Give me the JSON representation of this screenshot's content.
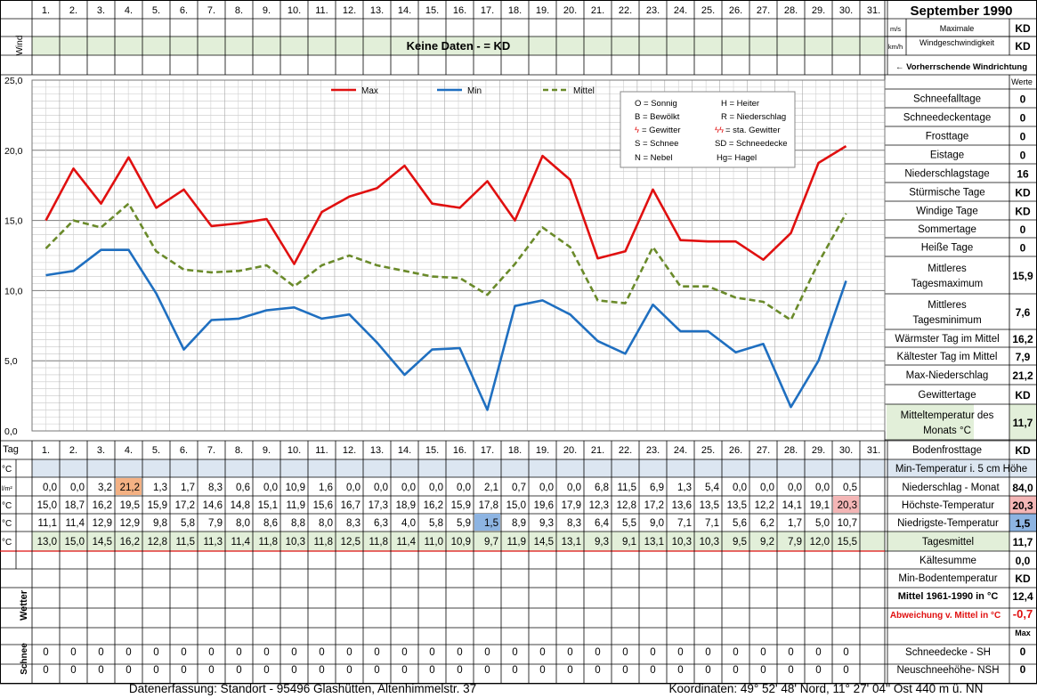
{
  "title": "September 1990",
  "days": [
    "1.",
    "2.",
    "3.",
    "4.",
    "5.",
    "6.",
    "7.",
    "8.",
    "9.",
    "10.",
    "11.",
    "12.",
    "13.",
    "14.",
    "15.",
    "16.",
    "17.",
    "18.",
    "19.",
    "20.",
    "21.",
    "22.",
    "23.",
    "24.",
    "25.",
    "26.",
    "27.",
    "28.",
    "29.",
    "30.",
    "31."
  ],
  "wind": {
    "label": "Wind",
    "no_data": "Keine Daten -  = KD",
    "unit_ms": "m/s",
    "unit_kmh": "km/h",
    "max_label_1": "Maximale",
    "max_label_2": "Windgeschwindigkeit",
    "max_ms": "KD",
    "max_kmh": "KD",
    "direction_label": "← Vorherrschende Windrichtung"
  },
  "legend_box": {
    "sonnig": "O = Sonnig",
    "heiter": "H = Heiter",
    "bewoelkt": "B = Bewölkt",
    "niederschlag": "R = Niederschlag",
    "gewitter": "= Gewitter",
    "sta_gewitter": "= sta. Gewitter",
    "schnee": "S = Schnee",
    "schneedecke": "SD = Schneedecke",
    "nebel": "N = Nebel",
    "hagel": "Hg= Hagel"
  },
  "chart_data": {
    "type": "line",
    "x": [
      1,
      2,
      3,
      4,
      5,
      6,
      7,
      8,
      9,
      10,
      11,
      12,
      13,
      14,
      15,
      16,
      17,
      18,
      19,
      20,
      21,
      22,
      23,
      24,
      25,
      26,
      27,
      28,
      29,
      30
    ],
    "ylim": [
      0,
      25
    ],
    "yticks": [
      "0,0",
      "5,0",
      "10,0",
      "15,0",
      "20,0",
      "25,0"
    ],
    "grid": true,
    "legend_position": "top",
    "series": [
      {
        "name": "Max",
        "color": "#e01010",
        "dash": false,
        "values": [
          15.0,
          18.7,
          16.2,
          19.5,
          15.9,
          17.2,
          14.6,
          14.8,
          15.1,
          11.9,
          15.6,
          16.7,
          17.3,
          18.9,
          16.2,
          15.9,
          17.8,
          15.0,
          19.6,
          17.9,
          12.3,
          12.8,
          17.2,
          13.6,
          13.5,
          13.5,
          12.2,
          14.1,
          19.1,
          20.3
        ]
      },
      {
        "name": "Min",
        "color": "#1f6fc0",
        "dash": false,
        "values": [
          11.1,
          11.4,
          12.9,
          12.9,
          9.8,
          5.8,
          7.9,
          8.0,
          8.6,
          8.8,
          8.0,
          8.3,
          6.3,
          4.0,
          5.8,
          5.9,
          1.5,
          8.9,
          9.3,
          8.3,
          6.4,
          5.5,
          9.0,
          7.1,
          7.1,
          5.6,
          6.2,
          1.7,
          5.0,
          10.7
        ]
      },
      {
        "name": "Mittel",
        "color": "#6a8a2a",
        "dash": true,
        "values": [
          13.0,
          15.0,
          14.5,
          16.2,
          12.8,
          11.5,
          11.3,
          11.4,
          11.8,
          10.3,
          11.8,
          12.5,
          11.8,
          11.4,
          11.0,
          10.9,
          9.7,
          11.9,
          14.5,
          13.1,
          9.3,
          9.1,
          13.1,
          10.3,
          10.3,
          9.5,
          9.2,
          7.9,
          12.0,
          15.5
        ]
      }
    ]
  },
  "table": {
    "tag_label": "Tag",
    "unit_c": "°C",
    "unit_lm2": "l/m²",
    "wetter_label": "Wetter",
    "schnee_label": "Schnee",
    "niederschlag": [
      "0,0",
      "0,0",
      "3,2",
      "21,2",
      "1,3",
      "1,7",
      "8,3",
      "0,6",
      "0,0",
      "10,9",
      "1,6",
      "0,0",
      "0,0",
      "0,0",
      "0,0",
      "0,0",
      "2,1",
      "0,7",
      "0,0",
      "0,0",
      "6,8",
      "11,5",
      "6,9",
      "1,3",
      "5,4",
      "0,0",
      "0,0",
      "0,0",
      "0,0",
      "0,5",
      ""
    ],
    "hoechst": [
      "15,0",
      "18,7",
      "16,2",
      "19,5",
      "15,9",
      "17,2",
      "14,6",
      "14,8",
      "15,1",
      "11,9",
      "15,6",
      "16,7",
      "17,3",
      "18,9",
      "16,2",
      "15,9",
      "17,8",
      "15,0",
      "19,6",
      "17,9",
      "12,3",
      "12,8",
      "17,2",
      "13,6",
      "13,5",
      "13,5",
      "12,2",
      "14,1",
      "19,1",
      "20,3",
      ""
    ],
    "niedrigst": [
      "11,1",
      "11,4",
      "12,9",
      "12,9",
      "9,8",
      "5,8",
      "7,9",
      "8,0",
      "8,6",
      "8,8",
      "8,0",
      "8,3",
      "6,3",
      "4,0",
      "5,8",
      "5,9",
      "1,5",
      "8,9",
      "9,3",
      "8,3",
      "6,4",
      "5,5",
      "9,0",
      "7,1",
      "7,1",
      "5,6",
      "6,2",
      "1,7",
      "5,0",
      "10,7",
      ""
    ],
    "mittel": [
      "13,0",
      "15,0",
      "14,5",
      "16,2",
      "12,8",
      "11,5",
      "11,3",
      "11,4",
      "11,8",
      "10,3",
      "11,8",
      "12,5",
      "11,8",
      "11,4",
      "11,0",
      "10,9",
      "9,7",
      "11,9",
      "14,5",
      "13,1",
      "9,3",
      "9,1",
      "13,1",
      "10,3",
      "10,3",
      "9,5",
      "9,2",
      "7,9",
      "12,0",
      "15,5",
      ""
    ],
    "schneedecke": [
      "0",
      "0",
      "0",
      "0",
      "0",
      "0",
      "0",
      "0",
      "0",
      "0",
      "0",
      "0",
      "0",
      "0",
      "0",
      "0",
      "0",
      "0",
      "0",
      "0",
      "0",
      "0",
      "0",
      "0",
      "0",
      "0",
      "0",
      "0",
      "0",
      "0",
      ""
    ],
    "neuschnee": [
      "0",
      "0",
      "0",
      "0",
      "0",
      "0",
      "0",
      "0",
      "0",
      "0",
      "0",
      "0",
      "0",
      "0",
      "0",
      "0",
      "0",
      "0",
      "0",
      "0",
      "0",
      "0",
      "0",
      "0",
      "0",
      "0",
      "0",
      "0",
      "0",
      "0",
      ""
    ]
  },
  "stats_header": "Werte",
  "stats": [
    {
      "label": "Schneefalltage",
      "value": "0"
    },
    {
      "label": "Schneedeckentage",
      "value": "0"
    },
    {
      "label": "Frosttage",
      "value": "0"
    },
    {
      "label": "Eistage",
      "value": "0"
    },
    {
      "label": "Niederschlagstage",
      "value": "16"
    },
    {
      "label": "Stürmische Tage",
      "value": "KD"
    },
    {
      "label": "Windige Tage",
      "value": "KD"
    },
    {
      "label": "Sommertage",
      "value": "0"
    },
    {
      "label": "Heiße Tage",
      "value": "0"
    },
    {
      "label": "Mittleres Tagesmaximum",
      "value": "15,9"
    },
    {
      "label": "Mittleres Tagesminimum",
      "value": "7,6"
    },
    {
      "label": "Wärmster Tag im Mittel",
      "value": "16,2"
    },
    {
      "label": "Kältester Tag im Mittel",
      "value": "7,9"
    },
    {
      "label": "Max-Niederschlag",
      "value": "21,2"
    },
    {
      "label": "Gewittertage",
      "value": "KD"
    },
    {
      "label": "Mitteltemperatur des Monats °C",
      "value": "11,7"
    },
    {
      "label": "Bodenfrosttage",
      "value": "KD"
    }
  ],
  "lower_stats": {
    "min_temp_5cm": "Min-Temperatur i. 5 cm Höhe",
    "niederschlag_monat": {
      "label": "Niederschlag - Monat",
      "value": "84,0"
    },
    "hoechst": {
      "label": "Höchste-Temperatur",
      "value": "20,3"
    },
    "niedrigst": {
      "label": "Niedrigste-Temperatur",
      "value": "1,5"
    },
    "tagesmittel": {
      "label": "Tagesmittel",
      "value": "11,7"
    },
    "kaeltesumme": {
      "label": "Kältesumme",
      "value": "0,0"
    },
    "min_boden": {
      "label": "Min-Bodentemperatur",
      "value": "KD"
    },
    "mittel_1961": {
      "label": "Mittel 1961-1990 in °C",
      "value": "12,4"
    },
    "abweichung": {
      "label": "Abweichung v. Mittel in °C",
      "value": "-0,7"
    },
    "max_label": "Max",
    "schneedecke": {
      "label": "Schneedecke -  SH",
      "value": "0"
    },
    "neuschnee": {
      "label": "Neuschneehöhe- NSH",
      "value": "0"
    }
  },
  "footer": {
    "left": "Datenerfassung:  Standort -  95496  Glashütten, Altenhimmelstr. 37",
    "right": "Koordinaten:  49° 52' 48' Nord,  11° 27' 04'' Ost   440 m ü. NN"
  },
  "colors": {
    "green_band": "#e2efd9",
    "blue_band": "#dce6f1",
    "hoechst_highlight": "#f4b6b6",
    "niedrigst_highlight": "#8db4e2",
    "niederschlag_highlight": "#f4b183"
  }
}
